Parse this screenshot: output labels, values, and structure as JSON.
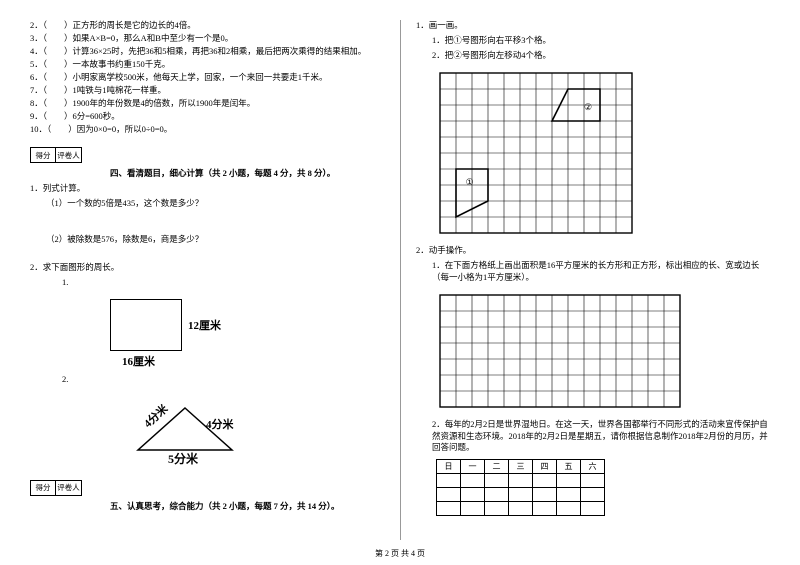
{
  "left": {
    "judgments": [
      "2．（　　）正方形的周长是它的边长的4倍。",
      "3．（　　）如果A×B=0，那么A和B中至少有一个是0。",
      "4．（　　）计算36×25时，先把36和5相乘，再把36和2相乘，最后把两次乘得的结果相加。",
      "5．（　　）一本故事书约重150千克。",
      "6．（　　）小明家离学校500米，他每天上学，回家，一个来回一共要走1千米。",
      "7．（　　）1吨铁与1吨棉花一样重。",
      "8．（　　）1900年的年份数是4的倍数，所以1900年是闰年。",
      "9．（　　）6分=600秒。",
      "10．（　　）因为0×0=0，所以0÷0=0。"
    ],
    "scorebox": {
      "c1": "得分",
      "c2": "评卷人"
    },
    "section4_title": "四、看清题目，细心计算（共 2 小题，每题 4 分，共 8 分）。",
    "q1": "1．列式计算。",
    "q1_1": "（1）一个数的5倍是435，这个数是多少？",
    "q1_2": "（2）被除数是576，除数是6，商是多少？",
    "q2": "2．求下面图形的周长。",
    "q2_1": "1.",
    "rect_right": "12厘米",
    "rect_bottom": "16厘米",
    "q2_2": "2.",
    "tri_left": "4分米",
    "tri_right": "4分米",
    "tri_bottom": "5分米",
    "section5_title": "五、认真思考，综合能力（共 2 小题，每题 7 分，共 14 分）。"
  },
  "right": {
    "q1": "1．画一画。",
    "q1_1": "1．把①号图形向右平移3个格。",
    "q1_2": "2．把②号图形向左移动4个格。",
    "grid1": {
      "cols": 12,
      "rows": 10,
      "cell": 16
    },
    "shape1_label": "①",
    "shape2_label": "②",
    "q2": "2．动手操作。",
    "q2_1": "1．在下面方格纸上画出面积是16平方厘米的长方形和正方形，标出相应的长、宽或边长（每一小格为1平方厘米）。",
    "grid2": {
      "cols": 15,
      "rows": 7,
      "cell": 16
    },
    "q2_2": "2．每年的2月2日是世界湿地日。在这一天，世界各国都举行不同形式的活动来宣传保护自然资源和生态环境。2018年的2月2日是星期五，请你根据信息制作2018年2月份的月历，并回答问题。",
    "calendar_head": [
      "日",
      "一",
      "二",
      "三",
      "四",
      "五",
      "六"
    ]
  },
  "footer": "第 2 页 共 4 页"
}
